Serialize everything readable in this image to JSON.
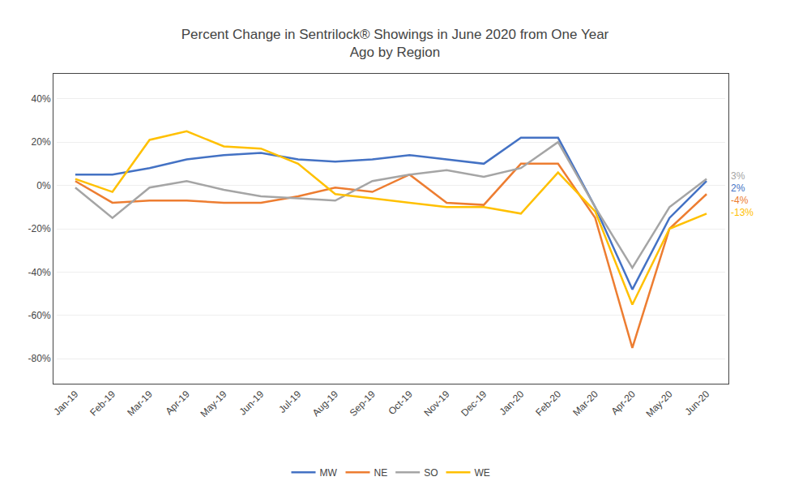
{
  "chart_data": {
    "type": "line",
    "title": "Percent Change in Sentrilock® Showings in June 2020 from One Year\nAgo by Region",
    "categories": [
      "Jan-19",
      "Feb-19",
      "Mar-19",
      "Apr-19",
      "May-19",
      "Jun-19",
      "Jul-19",
      "Aug-19",
      "Sep-19",
      "Oct-19",
      "Nov-19",
      "Dec-19",
      "Jan-20",
      "Feb-20",
      "Mar-20",
      "Apr-20",
      "May-20",
      "Jun-20"
    ],
    "series": [
      {
        "name": "MW",
        "color": "#4472C4",
        "values": [
          0.05,
          0.05,
          0.08,
          0.12,
          0.14,
          0.15,
          0.12,
          0.11,
          0.12,
          0.14,
          0.12,
          0.1,
          0.22,
          0.22,
          -0.1,
          -0.48,
          -0.15,
          0.02
        ]
      },
      {
        "name": "NE",
        "color": "#ED7D31",
        "values": [
          0.02,
          -0.08,
          -0.07,
          -0.07,
          -0.08,
          -0.08,
          -0.05,
          -0.01,
          -0.03,
          0.05,
          -0.08,
          -0.09,
          0.1,
          0.1,
          -0.15,
          -0.75,
          -0.2,
          -0.04
        ]
      },
      {
        "name": "SO",
        "color": "#A5A5A5",
        "values": [
          -0.01,
          -0.15,
          -0.01,
          0.02,
          -0.02,
          -0.05,
          -0.06,
          -0.07,
          0.02,
          0.05,
          0.07,
          0.04,
          0.08,
          0.2,
          -0.1,
          -0.38,
          -0.1,
          0.03
        ]
      },
      {
        "name": "WE",
        "color": "#FFC000",
        "values": [
          0.03,
          -0.03,
          0.21,
          0.25,
          0.18,
          0.17,
          0.1,
          -0.04,
          -0.06,
          -0.08,
          -0.1,
          -0.1,
          -0.13,
          0.06,
          -0.12,
          -0.55,
          -0.2,
          -0.13
        ]
      }
    ],
    "ylim": [
      -0.9,
      0.5
    ],
    "yticks": [
      {
        "value": -0.8,
        "label": "-80%"
      },
      {
        "value": -0.6,
        "label": "-60%"
      },
      {
        "value": -0.4,
        "label": "-40%"
      },
      {
        "value": -0.2,
        "label": "-20%"
      },
      {
        "value": 0.0,
        "label": "0%"
      },
      {
        "value": 0.2,
        "label": "20%"
      },
      {
        "value": 0.4,
        "label": "40%"
      }
    ],
    "annotations": [
      {
        "text": "3%",
        "x": "Jun-20",
        "y": 0.03,
        "color": "#A5A5A5"
      },
      {
        "text": "2%",
        "x": "Jun-20",
        "y": 0.02,
        "color": "#4472C4"
      },
      {
        "text": "-4%",
        "x": "Jun-20",
        "y": -0.04,
        "color": "#ED7D31"
      },
      {
        "text": "-13%",
        "x": "Jun-20",
        "y": -0.13,
        "color": "#FFC000"
      }
    ],
    "grid": true,
    "legend": "bottom"
  }
}
